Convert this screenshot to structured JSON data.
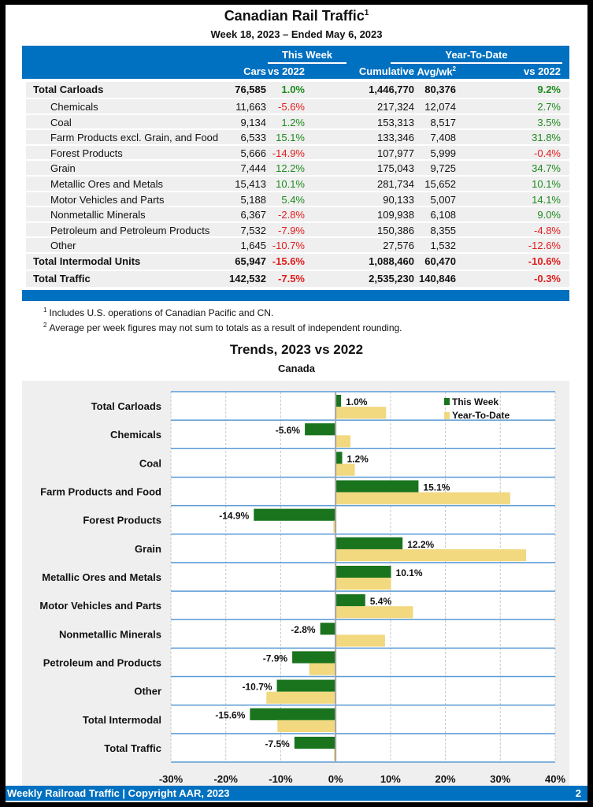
{
  "header": {
    "title": "Canadian Rail Traffic",
    "title_footnote": "1",
    "subtitle": "Week 18, 2023 – Ended May 6, 2023"
  },
  "table": {
    "group_this_week": "This Week",
    "group_ytd": "Year-To-Date",
    "columns": [
      "Cars",
      "vs 2022",
      "Cumulative",
      "Avg/wk",
      "vs 2022"
    ],
    "avg_footnote": "2",
    "rows": [
      {
        "label": "Total Carloads",
        "type": "total",
        "cars": "76,585",
        "vs_week": "1.0%",
        "cumulative": "1,446,770",
        "avg_wk": "80,376",
        "vs_ytd": "9.2%"
      },
      {
        "label": "Chemicals",
        "type": "sub",
        "cars": "11,663",
        "vs_week": "-5.6%",
        "cumulative": "217,324",
        "avg_wk": "12,074",
        "vs_ytd": "2.7%"
      },
      {
        "label": "Coal",
        "type": "sub",
        "cars": "9,134",
        "vs_week": "1.2%",
        "cumulative": "153,313",
        "avg_wk": "8,517",
        "vs_ytd": "3.5%"
      },
      {
        "label": "Farm Products excl. Grain, and Food",
        "type": "sub",
        "cars": "6,533",
        "vs_week": "15.1%",
        "cumulative": "133,346",
        "avg_wk": "7,408",
        "vs_ytd": "31.8%"
      },
      {
        "label": "Forest Products",
        "type": "sub",
        "cars": "5,666",
        "vs_week": "-14.9%",
        "cumulative": "107,977",
        "avg_wk": "5,999",
        "vs_ytd": "-0.4%"
      },
      {
        "label": "Grain",
        "type": "sub",
        "cars": "7,444",
        "vs_week": "12.2%",
        "cumulative": "175,043",
        "avg_wk": "9,725",
        "vs_ytd": "34.7%"
      },
      {
        "label": "Metallic Ores and Metals",
        "type": "sub",
        "cars": "15,413",
        "vs_week": "10.1%",
        "cumulative": "281,734",
        "avg_wk": "15,652",
        "vs_ytd": "10.1%"
      },
      {
        "label": "Motor Vehicles and Parts",
        "type": "sub",
        "cars": "5,188",
        "vs_week": "5.4%",
        "cumulative": "90,133",
        "avg_wk": "5,007",
        "vs_ytd": "14.1%"
      },
      {
        "label": "Nonmetallic Minerals",
        "type": "sub",
        "cars": "6,367",
        "vs_week": "-2.8%",
        "cumulative": "109,938",
        "avg_wk": "6,108",
        "vs_ytd": "9.0%"
      },
      {
        "label": "Petroleum and Petroleum Products",
        "type": "sub",
        "cars": "7,532",
        "vs_week": "-7.9%",
        "cumulative": "150,386",
        "avg_wk": "8,355",
        "vs_ytd": "-4.8%"
      },
      {
        "label": "Other",
        "type": "sub",
        "cars": "1,645",
        "vs_week": "-10.7%",
        "cumulative": "27,576",
        "avg_wk": "1,532",
        "vs_ytd": "-12.6%"
      },
      {
        "label": "Total Intermodal Units",
        "type": "total",
        "cars": "65,947",
        "vs_week": "-15.6%",
        "cumulative": "1,088,460",
        "avg_wk": "60,470",
        "vs_ytd": "-10.6%"
      },
      {
        "label": "Total Traffic",
        "type": "total",
        "cars": "142,532",
        "vs_week": "-7.5%",
        "cumulative": "2,535,230",
        "avg_wk": "140,846",
        "vs_ytd": "-0.3%"
      }
    ]
  },
  "footnotes": [
    {
      "mark": "1",
      "text": "Includes U.S. operations of Canadian Pacific and CN."
    },
    {
      "mark": "2",
      "text": "Average per week figures may not sum to totals as a result of independent rounding."
    }
  ],
  "colors": {
    "brand_blue": "#0070c0",
    "positive": "#1e8a1e",
    "negative": "#e21b1b",
    "this_week_bar": "#1a741e",
    "ytd_bar": "#f2d87e"
  },
  "chart_data": {
    "type": "bar",
    "orientation": "horizontal",
    "title": "Trends, 2023 vs 2022",
    "subtitle": "Canada",
    "xlabel": "",
    "ylabel": "",
    "xlim": [
      -30,
      40
    ],
    "x_ticks": [
      -30,
      -20,
      -10,
      0,
      10,
      20,
      30,
      40
    ],
    "x_tick_labels": [
      "-30%",
      "-20%",
      "-10%",
      "0%",
      "10%",
      "20%",
      "30%",
      "40%"
    ],
    "categories": [
      "Total Carloads",
      "Chemicals",
      "Coal",
      "Farm Products and Food",
      "Forest Products",
      "Grain",
      "Metallic Ores and Metals",
      "Motor Vehicles and Parts",
      "Nonmetallic Minerals",
      "Petroleum and Products",
      "Other",
      "Total Intermodal",
      "Total Traffic"
    ],
    "series": [
      {
        "name": "This Week",
        "values": [
          1.0,
          -5.6,
          1.2,
          15.1,
          -14.9,
          12.2,
          10.1,
          5.4,
          -2.8,
          -7.9,
          -10.7,
          -15.6,
          -7.5
        ],
        "labels": [
          "1.0%",
          "-5.6%",
          "1.2%",
          "15.1%",
          "-14.9%",
          "12.2%",
          "10.1%",
          "5.4%",
          "-2.8%",
          "-7.9%",
          "-10.7%",
          "-15.6%",
          "-7.5%"
        ]
      },
      {
        "name": "Year-To-Date",
        "values": [
          9.2,
          2.7,
          3.5,
          31.8,
          -0.4,
          34.7,
          10.1,
          14.1,
          9.0,
          -4.8,
          -12.6,
          -10.6,
          -0.3
        ]
      }
    ],
    "grid": true,
    "legend": "top-right"
  },
  "footer": {
    "left": "Weekly Railroad Traffic | Copyright AAR, 2023",
    "page": "2"
  }
}
